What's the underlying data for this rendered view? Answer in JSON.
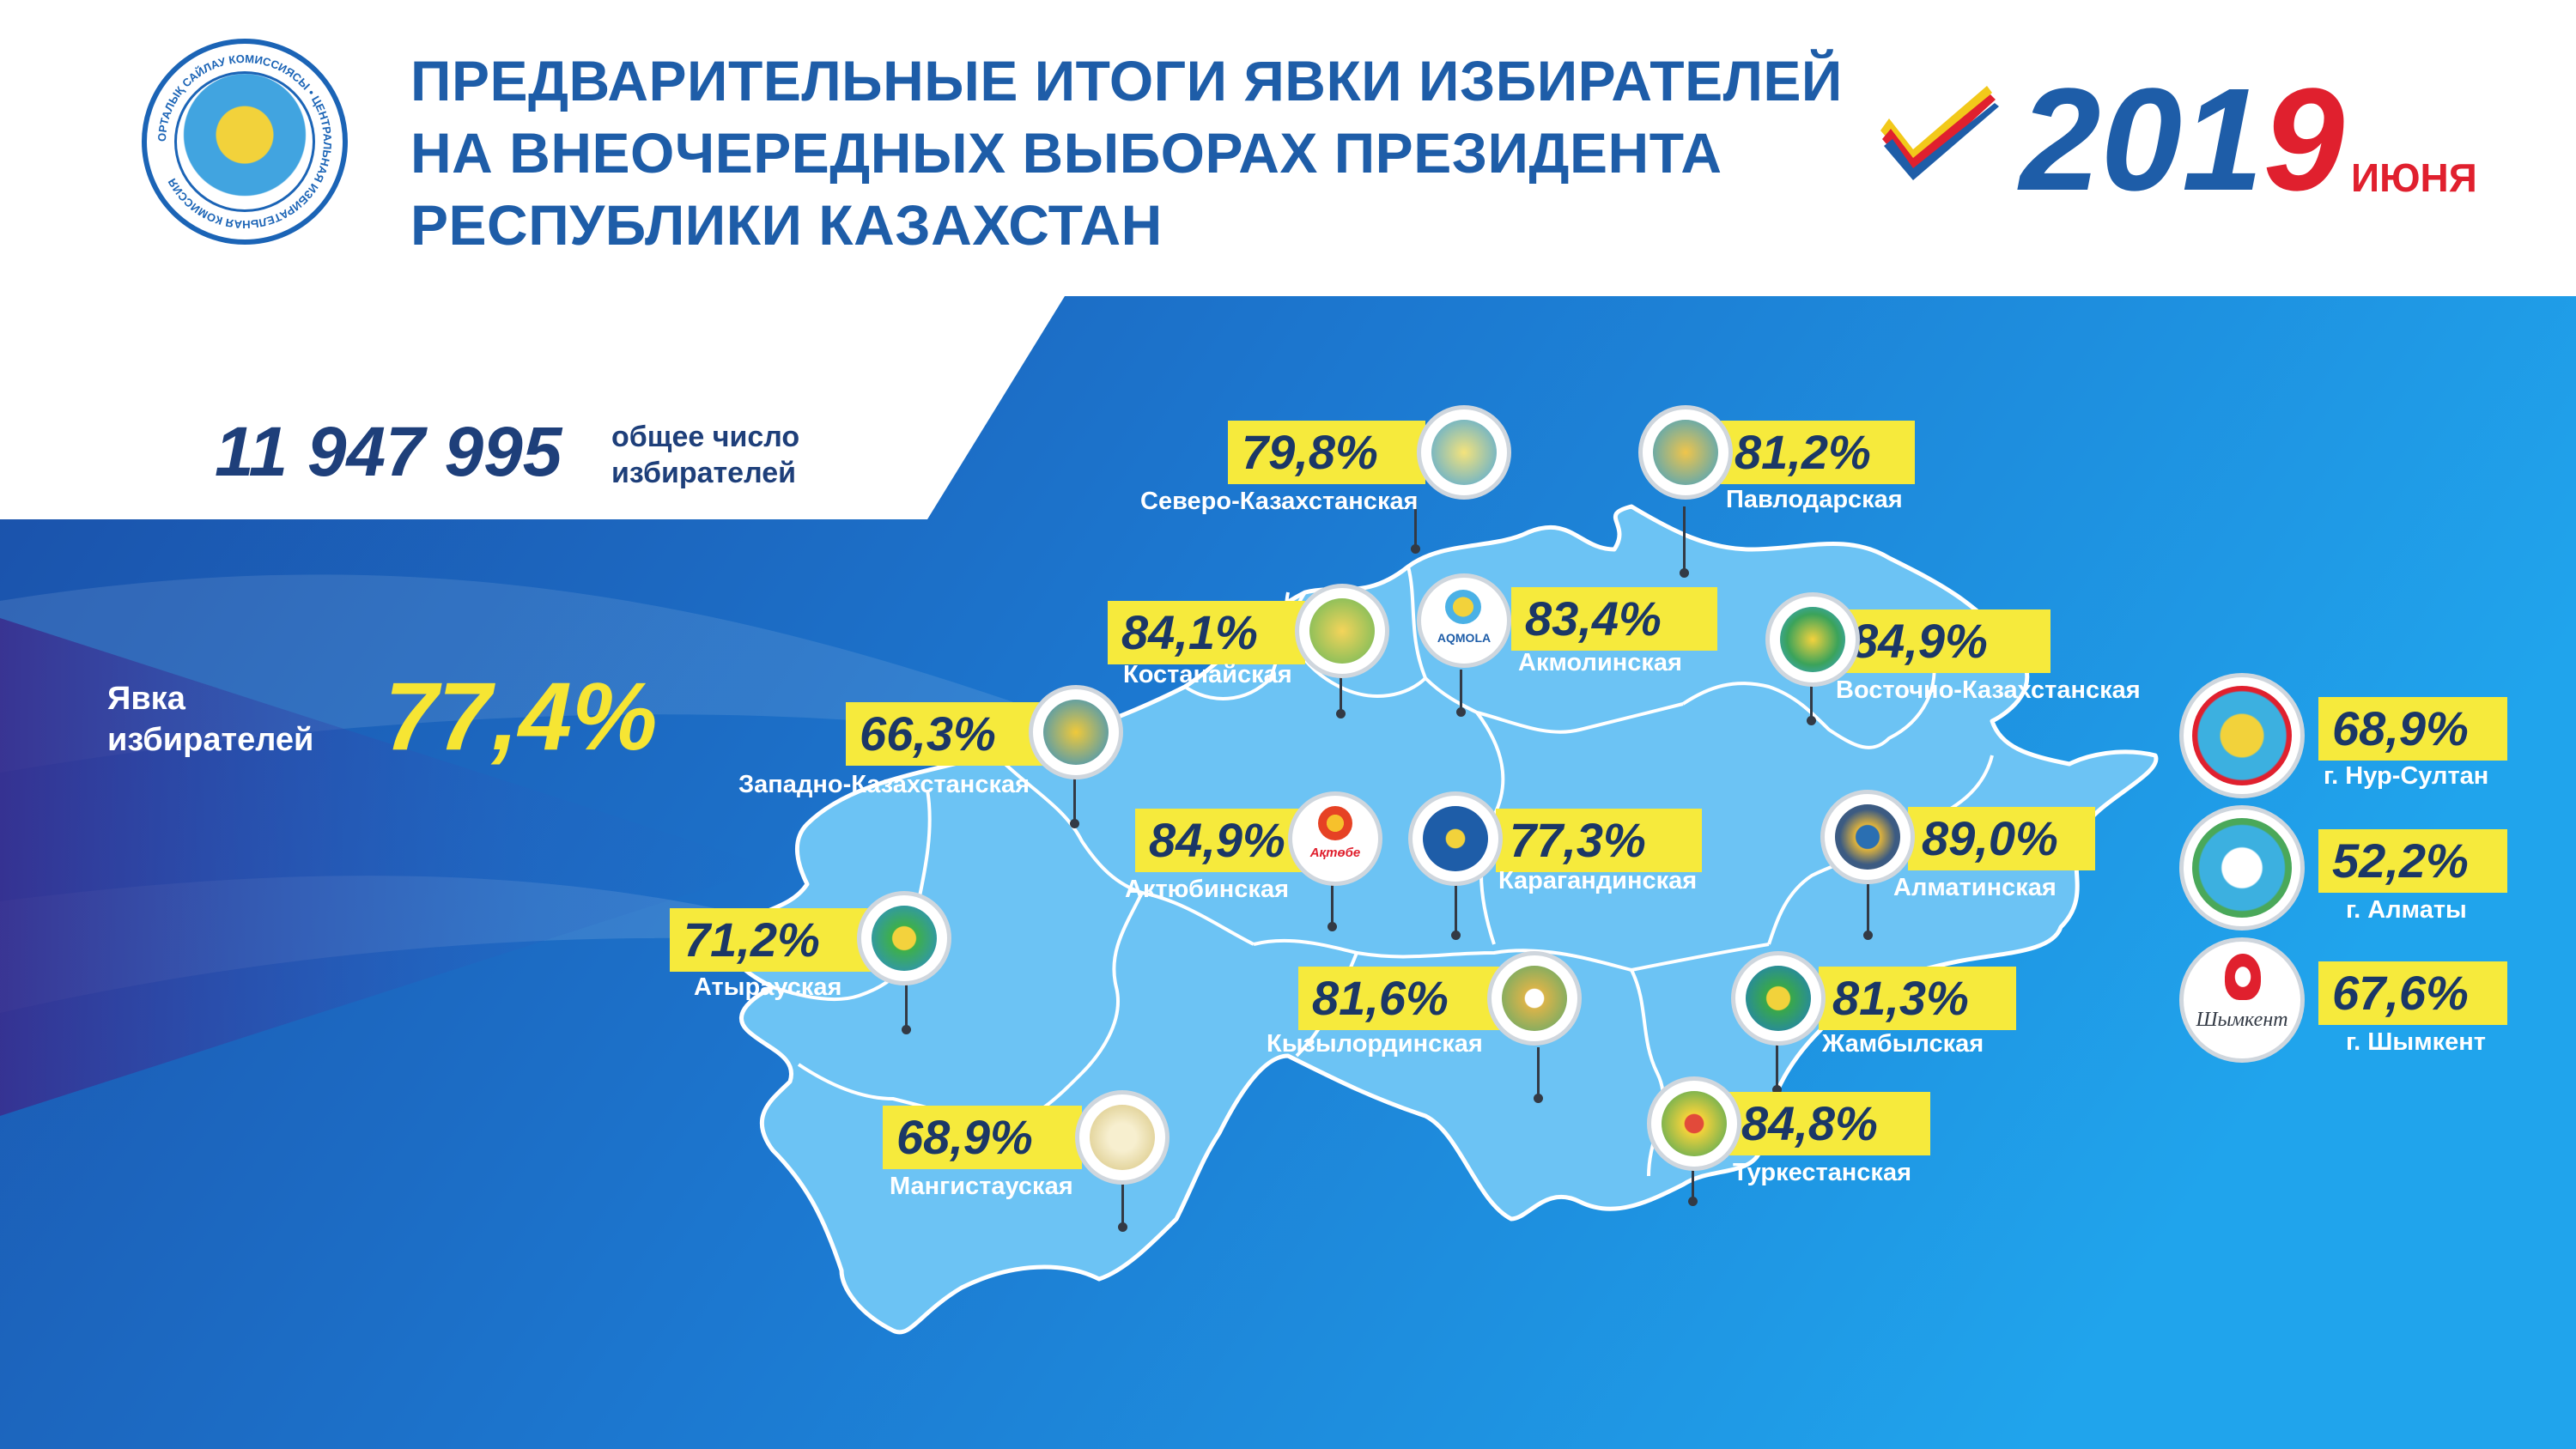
{
  "header": {
    "title_lines": [
      "ПРЕДВАРИТЕЛЬНЫЕ ИТОГИ ЯВКИ ИЗБИРАТЕЛЕЙ",
      "НА ВНЕОЧЕРЕДНЫХ ВЫБОРАХ ПРЕЗИДЕНТА",
      "РЕСПУБЛИКИ КАЗАХСТАН"
    ],
    "year_prefix": "201",
    "year_suffix": "9",
    "month": "ИЮНЯ",
    "seal_ring_text": "ОРТАЛЫҚ САЙЛАУ КОМИССИЯСЫ • ЦЕНТРАЛЬНАЯ ИЗБИРАТЕЛЬНАЯ КОМИССИЯ"
  },
  "stats": {
    "total_voters": "11 947 995",
    "total_voters_label_1": "общее число",
    "total_voters_label_2": "избирателей",
    "turnout_label_1": "Явка",
    "turnout_label_2": "избирателей",
    "turnout_value": "77,4%"
  },
  "regions": [
    {
      "name": "Северо-Казахстанская",
      "pct": "79,8%"
    },
    {
      "name": "Павлодарская",
      "pct": "81,2%"
    },
    {
      "name": "Костанайская",
      "pct": "84,1%"
    },
    {
      "name": "Акмолинская",
      "pct": "83,4%"
    },
    {
      "name": "Восточно-Казахстанская",
      "pct": "84,9%"
    },
    {
      "name": "Западно-Казахстанская",
      "pct": "66,3%"
    },
    {
      "name": "Актюбинская",
      "pct": "84,9%"
    },
    {
      "name": "Карагандинская",
      "pct": "77,3%"
    },
    {
      "name": "Алматинская",
      "pct": "89,0%"
    },
    {
      "name": "Атырауская",
      "pct": "71,2%"
    },
    {
      "name": "Кызылординская",
      "pct": "81,6%"
    },
    {
      "name": "Жамбылская",
      "pct": "81,3%"
    },
    {
      "name": "Туркестанская",
      "pct": "84,8%"
    },
    {
      "name": "Мангистауская",
      "pct": "68,9%"
    }
  ],
  "cities": [
    {
      "name": "г. Нур-Султан",
      "pct": "68,9%"
    },
    {
      "name": "г. Алматы",
      "pct": "52,2%"
    },
    {
      "name": "г. Шымкент",
      "pct": "67,6%"
    }
  ],
  "emblem_text": {
    "aqmola": "AQMOLA",
    "aktobe": "Ақтөбе",
    "shymkent": "Шымкент"
  }
}
